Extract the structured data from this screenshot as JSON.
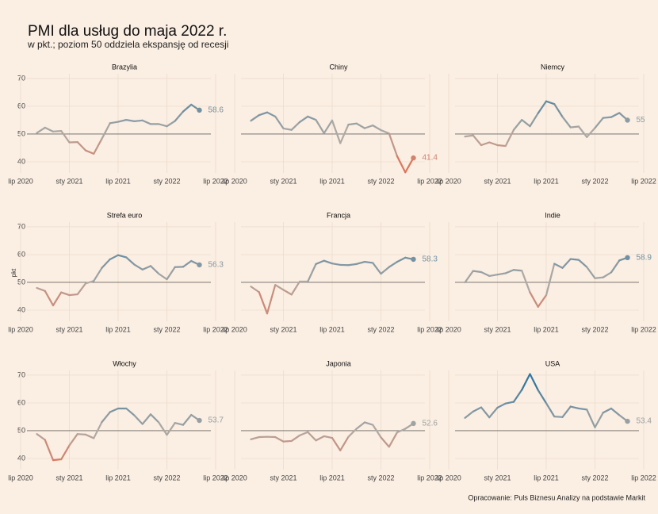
{
  "title": "PMI dla usług do maja 2022 r.",
  "subtitle": "w pkt.; poziom 50 oddziela ekspansję od recesji",
  "caption": "Opracowanie: Puls Biznesu Analizy na podstawie Markit",
  "y_label": "pkt",
  "chart_data": [
    {
      "type": "line",
      "title": "Brazylia",
      "x": [
        "2020-09",
        "2020-10",
        "2020-11",
        "2020-12",
        "2021-01",
        "2021-02",
        "2021-03",
        "2021-04",
        "2021-05",
        "2021-06",
        "2021-07",
        "2021-08",
        "2021-09",
        "2021-10",
        "2021-11",
        "2021-12",
        "2022-01",
        "2022-02",
        "2022-03",
        "2022-04",
        "2022-05"
      ],
      "series": [
        {
          "name": "Brazylia",
          "values": [
            50.4,
            52.3,
            50.9,
            51.1,
            47.0,
            47.1,
            44.1,
            42.9,
            48.3,
            53.9,
            54.4,
            55.1,
            54.6,
            54.9,
            53.6,
            53.6,
            52.8,
            54.7,
            58.1,
            60.6,
            58.6
          ]
        }
      ],
      "xlim": [
        "2020-07",
        "2022-07"
      ],
      "xticks": [
        {
          "value": "2020-07",
          "label": "lip 2020"
        },
        {
          "value": "2021-01",
          "label": "sty 2021"
        },
        {
          "value": "2021-07",
          "label": "lip 2021"
        },
        {
          "value": "2022-01",
          "label": "sty 2022"
        },
        {
          "value": "2022-07",
          "label": "lip 2022"
        }
      ],
      "ylim": [
        36,
        71.7
      ],
      "yticks": [
        40,
        50,
        60,
        70
      ],
      "hline": 50,
      "grid": true,
      "color_domain": [
        36,
        50,
        71
      ],
      "color_range": [
        "#e8694a",
        "#b0aaa4",
        "#1b6ea0"
      ]
    },
    {
      "type": "line",
      "title": "Chiny",
      "x": [
        "2020-09",
        "2020-10",
        "2020-11",
        "2020-12",
        "2021-01",
        "2021-02",
        "2021-03",
        "2021-04",
        "2021-05",
        "2021-06",
        "2021-07",
        "2021-08",
        "2021-09",
        "2021-10",
        "2021-11",
        "2021-12",
        "2022-01",
        "2022-02",
        "2022-03",
        "2022-04",
        "2022-05"
      ],
      "series": [
        {
          "name": "Chiny",
          "values": [
            54.8,
            56.8,
            57.8,
            56.3,
            52.0,
            51.5,
            54.3,
            56.3,
            55.1,
            50.3,
            54.9,
            46.7,
            53.4,
            53.8,
            52.1,
            53.1,
            51.4,
            50.2,
            42.0,
            36.2,
            41.4
          ]
        }
      ],
      "xlim": [
        "2020-07",
        "2022-07"
      ],
      "xticks": [
        {
          "value": "2020-07",
          "label": "lip 2020"
        },
        {
          "value": "2021-01",
          "label": "sty 2021"
        },
        {
          "value": "2021-07",
          "label": "lip 2021"
        },
        {
          "value": "2022-01",
          "label": "sty 2022"
        },
        {
          "value": "2022-07",
          "label": "lip 2022"
        }
      ],
      "ylim": [
        36,
        71.7
      ],
      "yticks": [
        40,
        50,
        60,
        70
      ],
      "hline": 50,
      "grid": true,
      "color_domain": [
        36,
        50,
        71
      ],
      "color_range": [
        "#e8694a",
        "#b0aaa4",
        "#1b6ea0"
      ]
    },
    {
      "type": "line",
      "title": "Niemcy",
      "x": [
        "2020-09",
        "2020-10",
        "2020-11",
        "2020-12",
        "2021-01",
        "2021-02",
        "2021-03",
        "2021-04",
        "2021-05",
        "2021-06",
        "2021-07",
        "2021-08",
        "2021-09",
        "2021-10",
        "2021-11",
        "2021-12",
        "2022-01",
        "2022-02",
        "2022-03",
        "2022-04",
        "2022-05"
      ],
      "series": [
        {
          "name": "Niemcy",
          "values": [
            49.1,
            49.5,
            46.0,
            47.0,
            46.0,
            45.7,
            51.5,
            55.1,
            52.8,
            57.5,
            61.8,
            60.8,
            56.2,
            52.4,
            52.7,
            48.9,
            52.2,
            55.8,
            56.1,
            57.6,
            55
          ]
        }
      ],
      "xlim": [
        "2020-07",
        "2022-07"
      ],
      "xticks": [
        {
          "value": "2020-07",
          "label": "lip 2020"
        },
        {
          "value": "2021-01",
          "label": "sty 2021"
        },
        {
          "value": "2021-07",
          "label": "lip 2021"
        },
        {
          "value": "2022-01",
          "label": "sty 2022"
        },
        {
          "value": "2022-07",
          "label": "lip 2022"
        }
      ],
      "ylim": [
        36,
        71.7
      ],
      "yticks": [
        40,
        50,
        60,
        70
      ],
      "hline": 50,
      "grid": true,
      "color_domain": [
        36,
        50,
        71
      ],
      "color_range": [
        "#e8694a",
        "#b0aaa4",
        "#1b6ea0"
      ]
    },
    {
      "type": "line",
      "title": "Strefa euro",
      "x": [
        "2020-09",
        "2020-10",
        "2020-11",
        "2020-12",
        "2021-01",
        "2021-02",
        "2021-03",
        "2021-04",
        "2021-05",
        "2021-06",
        "2021-07",
        "2021-08",
        "2021-09",
        "2021-10",
        "2021-11",
        "2021-12",
        "2022-01",
        "2022-02",
        "2022-03",
        "2022-04",
        "2022-05"
      ],
      "series": [
        {
          "name": "Strefa euro",
          "values": [
            48.0,
            46.9,
            41.7,
            46.4,
            45.4,
            45.7,
            49.6,
            50.5,
            55.2,
            58.3,
            59.8,
            59.0,
            56.4,
            54.6,
            55.9,
            53.1,
            51.1,
            55.5,
            55.6,
            57.7,
            56.3
          ]
        }
      ],
      "xlim": [
        "2020-07",
        "2022-07"
      ],
      "xticks": [
        {
          "value": "2020-07",
          "label": "lip 2020"
        },
        {
          "value": "2021-01",
          "label": "sty 2021"
        },
        {
          "value": "2021-07",
          "label": "lip 2021"
        },
        {
          "value": "2022-01",
          "label": "sty 2022"
        },
        {
          "value": "2022-07",
          "label": "lip 2022"
        }
      ],
      "ylim": [
        36,
        71.7
      ],
      "yticks": [
        40,
        50,
        60,
        70
      ],
      "hline": 50,
      "grid": true,
      "color_domain": [
        36,
        50,
        71
      ],
      "color_range": [
        "#e8694a",
        "#b0aaa4",
        "#1b6ea0"
      ]
    },
    {
      "type": "line",
      "title": "Francja",
      "x": [
        "2020-09",
        "2020-10",
        "2020-11",
        "2020-12",
        "2021-01",
        "2021-02",
        "2021-03",
        "2021-04",
        "2021-05",
        "2021-06",
        "2021-07",
        "2021-08",
        "2021-09",
        "2021-10",
        "2021-11",
        "2021-12",
        "2022-01",
        "2022-02",
        "2022-03",
        "2022-04",
        "2022-05"
      ],
      "series": [
        {
          "name": "Francja",
          "values": [
            48.5,
            46.5,
            38.8,
            49.1,
            47.3,
            45.6,
            50.3,
            50.3,
            56.6,
            57.8,
            56.8,
            56.3,
            56.2,
            56.6,
            57.4,
            57.0,
            53.1,
            55.5,
            57.4,
            58.9,
            58.3
          ]
        }
      ],
      "xlim": [
        "2020-07",
        "2022-07"
      ],
      "xticks": [
        {
          "value": "2020-07",
          "label": "lip 2020"
        },
        {
          "value": "2021-01",
          "label": "sty 2021"
        },
        {
          "value": "2021-07",
          "label": "lip 2021"
        },
        {
          "value": "2022-01",
          "label": "sty 2022"
        },
        {
          "value": "2022-07",
          "label": "lip 2022"
        }
      ],
      "ylim": [
        36,
        71.7
      ],
      "yticks": [
        40,
        50,
        60,
        70
      ],
      "hline": 50,
      "grid": true,
      "color_domain": [
        36,
        50,
        71
      ],
      "color_range": [
        "#e8694a",
        "#b0aaa4",
        "#1b6ea0"
      ]
    },
    {
      "type": "line",
      "title": "Indie",
      "x": [
        "2020-09",
        "2020-10",
        "2020-11",
        "2020-12",
        "2021-01",
        "2021-02",
        "2021-03",
        "2021-04",
        "2021-05",
        "2021-06",
        "2021-07",
        "2021-08",
        "2021-09",
        "2021-10",
        "2021-11",
        "2021-12",
        "2022-01",
        "2022-02",
        "2022-03",
        "2022-04",
        "2022-05"
      ],
      "series": [
        {
          "name": "Indie",
          "values": [
            50.0,
            54.1,
            53.7,
            52.3,
            52.8,
            53.3,
            54.5,
            54.2,
            46.4,
            41.2,
            45.4,
            56.7,
            55.2,
            58.4,
            58.1,
            55.5,
            51.5,
            51.8,
            53.6,
            57.9,
            58.9
          ]
        }
      ],
      "xlim": [
        "2020-07",
        "2022-07"
      ],
      "xticks": [
        {
          "value": "2020-07",
          "label": "lip 2020"
        },
        {
          "value": "2021-01",
          "label": "sty 2021"
        },
        {
          "value": "2021-07",
          "label": "lip 2021"
        },
        {
          "value": "2022-01",
          "label": "sty 2022"
        },
        {
          "value": "2022-07",
          "label": "lip 2022"
        }
      ],
      "ylim": [
        36,
        71.7
      ],
      "yticks": [
        40,
        50,
        60,
        70
      ],
      "hline": 50,
      "grid": true,
      "color_domain": [
        36,
        50,
        71
      ],
      "color_range": [
        "#e8694a",
        "#b0aaa4",
        "#1b6ea0"
      ]
    },
    {
      "type": "line",
      "title": "Włochy",
      "x": [
        "2020-09",
        "2020-10",
        "2020-11",
        "2020-12",
        "2021-01",
        "2021-02",
        "2021-03",
        "2021-04",
        "2021-05",
        "2021-06",
        "2021-07",
        "2021-08",
        "2021-09",
        "2021-10",
        "2021-11",
        "2021-12",
        "2022-01",
        "2022-02",
        "2022-03",
        "2022-04",
        "2022-05"
      ],
      "series": [
        {
          "name": "Włochy",
          "values": [
            48.8,
            46.7,
            39.4,
            39.7,
            44.7,
            48.8,
            48.6,
            47.3,
            53.1,
            56.7,
            58.0,
            58.0,
            55.5,
            52.4,
            55.9,
            53.0,
            48.5,
            52.8,
            52.1,
            55.7,
            53.7
          ]
        }
      ],
      "xlim": [
        "2020-07",
        "2022-07"
      ],
      "xticks": [
        {
          "value": "2020-07",
          "label": "lip 2020"
        },
        {
          "value": "2021-01",
          "label": "sty 2021"
        },
        {
          "value": "2021-07",
          "label": "lip 2021"
        },
        {
          "value": "2022-01",
          "label": "sty 2022"
        },
        {
          "value": "2022-07",
          "label": "lip 2022"
        }
      ],
      "ylim": [
        36,
        71.7
      ],
      "yticks": [
        40,
        50,
        60,
        70
      ],
      "hline": 50,
      "grid": true,
      "color_domain": [
        36,
        50,
        71
      ],
      "color_range": [
        "#e8694a",
        "#b0aaa4",
        "#1b6ea0"
      ]
    },
    {
      "type": "line",
      "title": "Japonia",
      "x": [
        "2020-09",
        "2020-10",
        "2020-11",
        "2020-12",
        "2021-01",
        "2021-02",
        "2021-03",
        "2021-04",
        "2021-05",
        "2021-06",
        "2021-07",
        "2021-08",
        "2021-09",
        "2021-10",
        "2021-11",
        "2021-12",
        "2022-01",
        "2022-02",
        "2022-03",
        "2022-04",
        "2022-05"
      ],
      "series": [
        {
          "name": "Japonia",
          "values": [
            46.9,
            47.7,
            47.8,
            47.7,
            46.1,
            46.3,
            48.3,
            49.5,
            46.5,
            48.0,
            47.4,
            42.9,
            47.8,
            50.7,
            53.0,
            52.1,
            47.6,
            44.2,
            49.4,
            50.7,
            52.6
          ]
        }
      ],
      "xlim": [
        "2020-07",
        "2022-07"
      ],
      "xticks": [
        {
          "value": "2020-07",
          "label": "lip 2020"
        },
        {
          "value": "2021-01",
          "label": "sty 2021"
        },
        {
          "value": "2021-07",
          "label": "lip 2021"
        },
        {
          "value": "2022-01",
          "label": "sty 2022"
        },
        {
          "value": "2022-07",
          "label": "lip 2022"
        }
      ],
      "ylim": [
        36,
        71.7
      ],
      "yticks": [
        40,
        50,
        60,
        70
      ],
      "hline": 50,
      "grid": true,
      "color_domain": [
        36,
        50,
        71
      ],
      "color_range": [
        "#e8694a",
        "#b0aaa4",
        "#1b6ea0"
      ]
    },
    {
      "type": "line",
      "title": "USA",
      "x": [
        "2020-09",
        "2020-10",
        "2020-11",
        "2020-12",
        "2021-01",
        "2021-02",
        "2021-03",
        "2021-04",
        "2021-05",
        "2021-06",
        "2021-07",
        "2021-08",
        "2021-09",
        "2021-10",
        "2021-11",
        "2021-12",
        "2022-01",
        "2022-02",
        "2022-03",
        "2022-04",
        "2022-05"
      ],
      "series": [
        {
          "name": "USA",
          "values": [
            54.6,
            56.9,
            58.4,
            54.8,
            58.3,
            59.8,
            60.4,
            64.7,
            70.4,
            64.6,
            59.9,
            55.1,
            54.9,
            58.7,
            58.0,
            57.6,
            51.2,
            56.5,
            58.0,
            55.6,
            53.4
          ]
        }
      ],
      "xlim": [
        "2020-07",
        "2022-07"
      ],
      "xticks": [
        {
          "value": "2020-07",
          "label": "lip 2020"
        },
        {
          "value": "2021-01",
          "label": "sty 2021"
        },
        {
          "value": "2021-07",
          "label": "lip 2021"
        },
        {
          "value": "2022-01",
          "label": "sty 2022"
        },
        {
          "value": "2022-07",
          "label": "lip 2022"
        }
      ],
      "ylim": [
        36,
        71.7
      ],
      "yticks": [
        40,
        50,
        60,
        70
      ],
      "hline": 50,
      "grid": true,
      "color_domain": [
        36,
        50,
        71
      ],
      "color_range": [
        "#e8694a",
        "#b0aaa4",
        "#1b6ea0"
      ]
    }
  ]
}
